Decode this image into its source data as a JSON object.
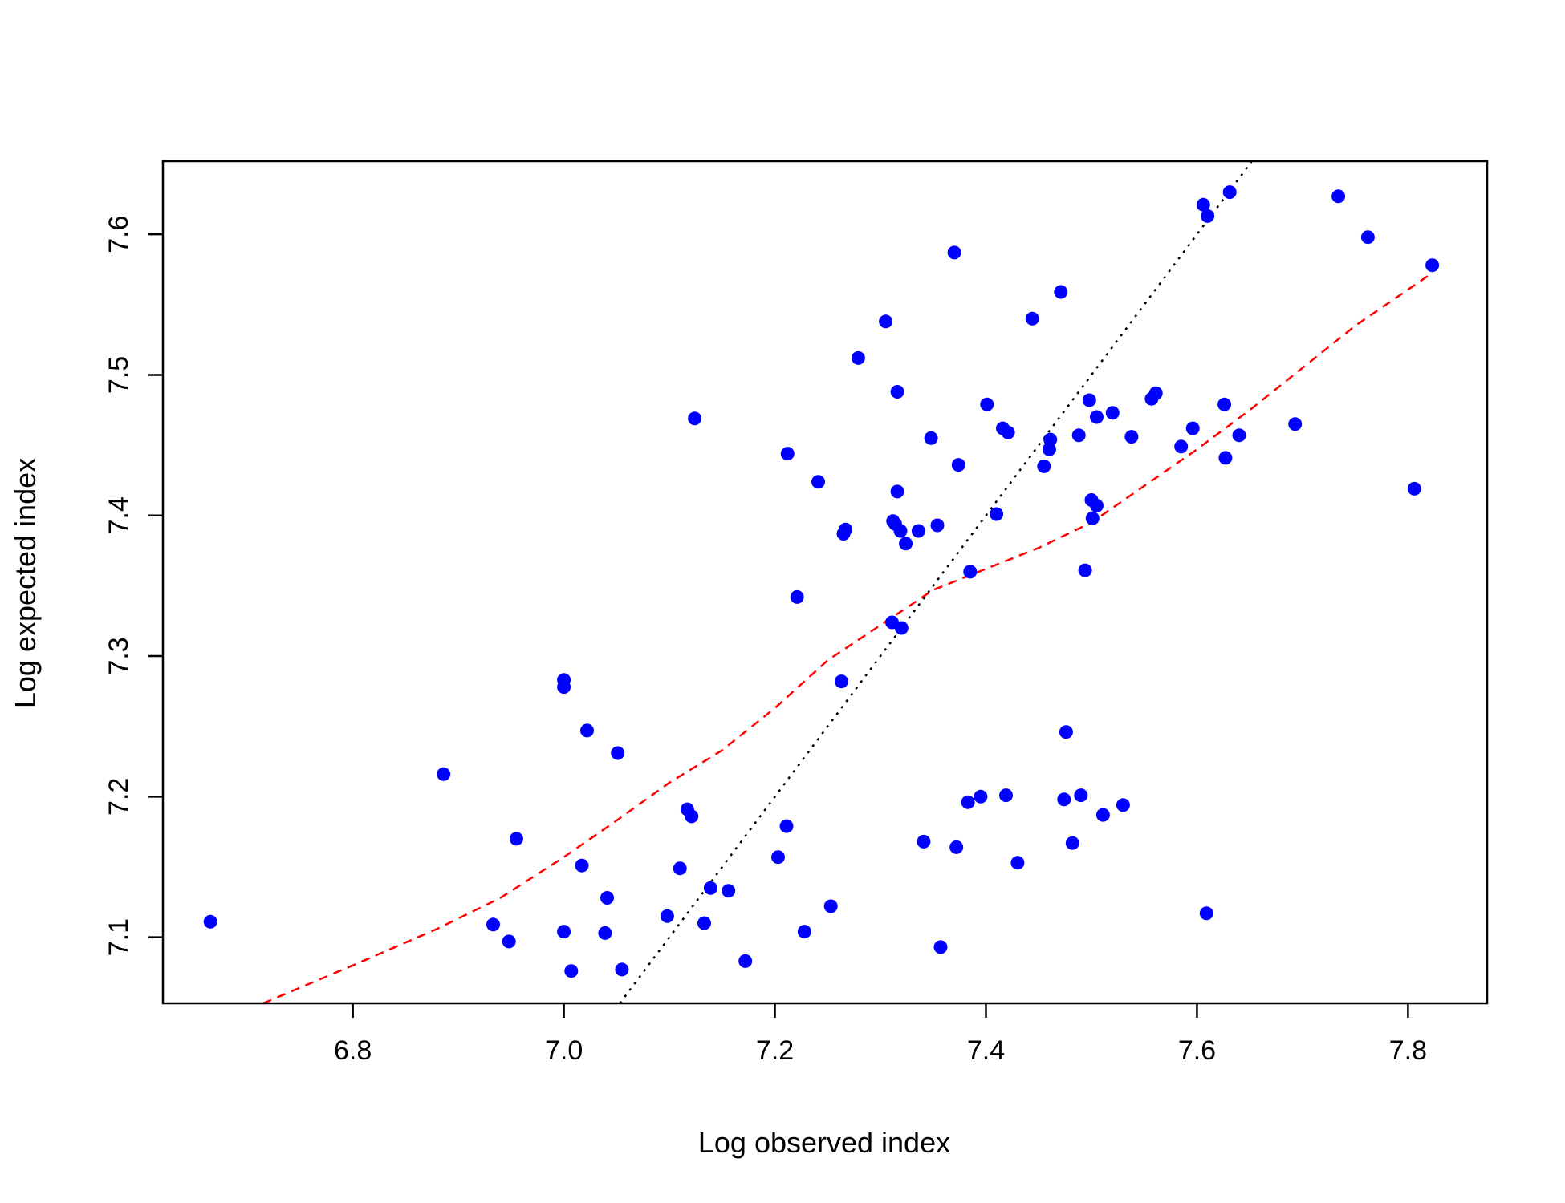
{
  "chart_data": {
    "type": "scatter",
    "title": "",
    "xlabel": "Log observed index",
    "ylabel": "Log expected index",
    "xlim": [
      6.62,
      7.875
    ],
    "ylim": [
      7.053,
      7.652
    ],
    "x_ticks": [
      6.8,
      7.0,
      7.2,
      7.4,
      7.6,
      7.8
    ],
    "y_ticks": [
      7.1,
      7.2,
      7.3,
      7.4,
      7.5,
      7.6
    ],
    "x_tick_labels": [
      "6.8",
      "7.0",
      "7.2",
      "7.4",
      "7.6",
      "7.8"
    ],
    "y_tick_labels": [
      "7.1",
      "7.2",
      "7.3",
      "7.4",
      "7.5",
      "7.6"
    ],
    "grid": false,
    "colors": {
      "points": "#0000ff",
      "fit_line": "#ff0000",
      "identity_line": "#000000"
    },
    "points": [
      [
        6.665,
        7.111
      ],
      [
        6.886,
        7.216
      ],
      [
        6.933,
        7.109
      ],
      [
        6.948,
        7.097
      ],
      [
        6.955,
        7.17
      ],
      [
        7.0,
        7.283
      ],
      [
        7.0,
        7.278
      ],
      [
        7.0,
        7.104
      ],
      [
        7.007,
        7.076
      ],
      [
        7.017,
        7.151
      ],
      [
        7.022,
        7.247
      ],
      [
        7.039,
        7.103
      ],
      [
        7.041,
        7.128
      ],
      [
        7.051,
        7.231
      ],
      [
        7.055,
        7.077
      ],
      [
        7.098,
        7.115
      ],
      [
        7.11,
        7.149
      ],
      [
        7.117,
        7.191
      ],
      [
        7.121,
        7.186
      ],
      [
        7.124,
        7.469
      ],
      [
        7.133,
        7.11
      ],
      [
        7.139,
        7.135
      ],
      [
        7.156,
        7.133
      ],
      [
        7.172,
        7.083
      ],
      [
        7.203,
        7.157
      ],
      [
        7.211,
        7.179
      ],
      [
        7.212,
        7.444
      ],
      [
        7.221,
        7.342
      ],
      [
        7.228,
        7.104
      ],
      [
        7.241,
        7.424
      ],
      [
        7.253,
        7.122
      ],
      [
        7.263,
        7.282
      ],
      [
        7.265,
        7.387
      ],
      [
        7.267,
        7.39
      ],
      [
        7.279,
        7.512
      ],
      [
        7.305,
        7.538
      ],
      [
        7.311,
        7.324
      ],
      [
        7.312,
        7.396
      ],
      [
        7.314,
        7.394
      ],
      [
        7.316,
        7.417
      ],
      [
        7.316,
        7.488
      ],
      [
        7.319,
        7.389
      ],
      [
        7.32,
        7.32
      ],
      [
        7.324,
        7.38
      ],
      [
        7.336,
        7.389
      ],
      [
        7.341,
        7.168
      ],
      [
        7.348,
        7.455
      ],
      [
        7.354,
        7.393
      ],
      [
        7.357,
        7.093
      ],
      [
        7.37,
        7.587
      ],
      [
        7.372,
        7.164
      ],
      [
        7.374,
        7.436
      ],
      [
        7.383,
        7.196
      ],
      [
        7.385,
        7.36
      ],
      [
        7.395,
        7.2
      ],
      [
        7.401,
        7.479
      ],
      [
        7.41,
        7.401
      ],
      [
        7.416,
        7.462
      ],
      [
        7.419,
        7.201
      ],
      [
        7.421,
        7.459
      ],
      [
        7.43,
        7.153
      ],
      [
        7.444,
        7.54
      ],
      [
        7.455,
        7.435
      ],
      [
        7.46,
        7.447
      ],
      [
        7.461,
        7.454
      ],
      [
        7.471,
        7.559
      ],
      [
        7.474,
        7.198
      ],
      [
        7.476,
        7.246
      ],
      [
        7.482,
        7.167
      ],
      [
        7.488,
        7.457
      ],
      [
        7.49,
        7.201
      ],
      [
        7.494,
        7.361
      ],
      [
        7.498,
        7.482
      ],
      [
        7.5,
        7.411
      ],
      [
        7.501,
        7.398
      ],
      [
        7.505,
        7.47
      ],
      [
        7.505,
        7.407
      ],
      [
        7.511,
        7.187
      ],
      [
        7.52,
        7.473
      ],
      [
        7.53,
        7.194
      ],
      [
        7.538,
        7.456
      ],
      [
        7.557,
        7.483
      ],
      [
        7.561,
        7.487
      ],
      [
        7.585,
        7.449
      ],
      [
        7.596,
        7.462
      ],
      [
        7.606,
        7.621
      ],
      [
        7.609,
        7.117
      ],
      [
        7.61,
        7.613
      ],
      [
        7.626,
        7.479
      ],
      [
        7.627,
        7.441
      ],
      [
        7.631,
        7.63
      ],
      [
        7.64,
        7.457
      ],
      [
        7.693,
        7.465
      ],
      [
        7.734,
        7.627
      ],
      [
        7.762,
        7.598
      ],
      [
        7.806,
        7.419
      ],
      [
        7.823,
        7.578
      ]
    ],
    "fit_line": [
      [
        6.715,
        7.053
      ],
      [
        6.8,
        7.08
      ],
      [
        6.88,
        7.106
      ],
      [
        6.94,
        7.128
      ],
      [
        7.0,
        7.157
      ],
      [
        7.05,
        7.183
      ],
      [
        7.1,
        7.21
      ],
      [
        7.15,
        7.233
      ],
      [
        7.2,
        7.263
      ],
      [
        7.25,
        7.297
      ],
      [
        7.3,
        7.322
      ],
      [
        7.35,
        7.347
      ],
      [
        7.4,
        7.362
      ],
      [
        7.45,
        7.377
      ],
      [
        7.5,
        7.395
      ],
      [
        7.55,
        7.421
      ],
      [
        7.6,
        7.447
      ],
      [
        7.65,
        7.475
      ],
      [
        7.7,
        7.505
      ],
      [
        7.75,
        7.535
      ],
      [
        7.82,
        7.571
      ]
    ],
    "identity_line": [
      [
        7.053,
        7.053
      ],
      [
        7.652,
        7.652
      ]
    ]
  }
}
